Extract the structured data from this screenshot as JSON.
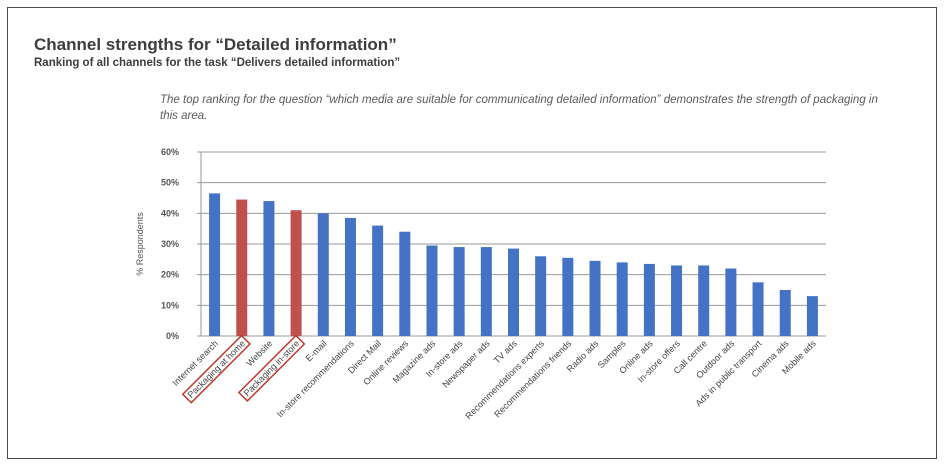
{
  "title": "Channel strengths for “Detailed information”",
  "subtitle": "Ranking of all channels for the task “Delivers detailed information”",
  "note": "The top ranking for the question “which media are suitable for communicating detailed information” demonstrates the strength of packaging in this area.",
  "colors": {
    "default_bar": "#4472c4",
    "highlight_bar": "#c0504d",
    "highlight_box": "#c0392b",
    "grid": "#9a9a9a"
  },
  "chart_data": {
    "type": "bar",
    "title": "",
    "xlabel": "",
    "ylabel": "% Respondents",
    "ylim": [
      0,
      60
    ],
    "yticks": [
      0,
      10,
      20,
      30,
      40,
      50,
      60
    ],
    "ytick_labels": [
      "0%",
      "10%",
      "20%",
      "30%",
      "40%",
      "50%",
      "60%"
    ],
    "grid": true,
    "categories": [
      "Internet search",
      "Packaging at home",
      "Website",
      "Packaging in-store",
      "E-mail",
      "In-store recommendations",
      "Direct Mail",
      "Online reviews",
      "Magazine ads",
      "In-store ads",
      "Newspaper ads",
      "TV ads",
      "Recommendations experts",
      "Recommendations friends",
      "Radio ads",
      "Samples",
      "Online ads",
      "In-store offers",
      "Call centre",
      "Outdoor ads",
      "Ads in public transport",
      "Cinema ads",
      "Mobile ads"
    ],
    "values": [
      46.5,
      44.5,
      44,
      41,
      40,
      38.5,
      36,
      34,
      29.5,
      29,
      29,
      28.5,
      26,
      25.5,
      24.5,
      24,
      23.5,
      23,
      23,
      22,
      17.5,
      15,
      13
    ],
    "highlighted": [
      "Packaging at home",
      "Packaging in-store"
    ]
  }
}
